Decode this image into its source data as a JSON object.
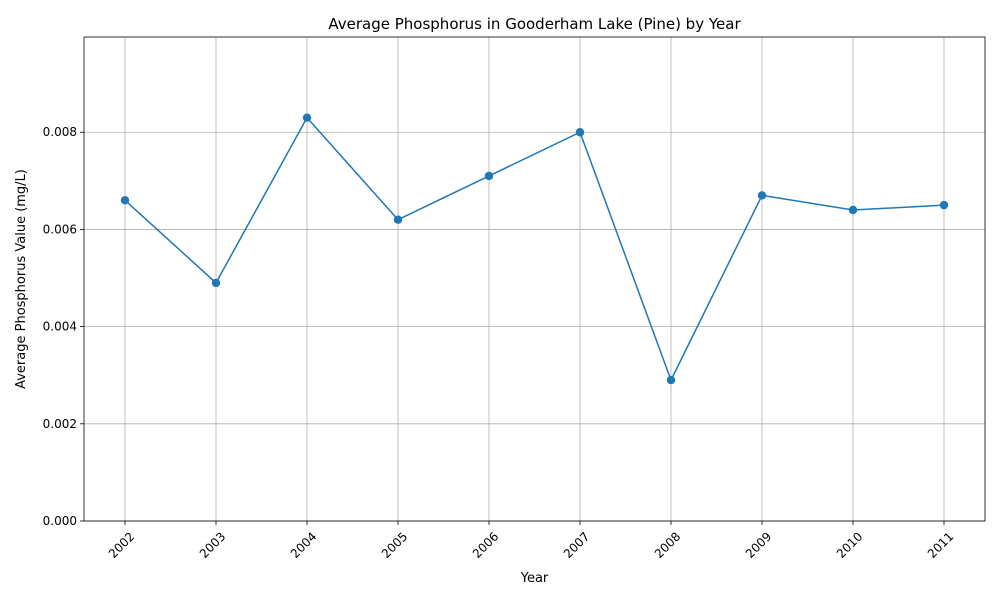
{
  "chart_data": {
    "type": "line",
    "title": "Average Phosphorus in Gooderham Lake (Pine) by Year",
    "xlabel": "Year",
    "ylabel": "Average Phosphorus Value (mg/L)",
    "categories": [
      "2002",
      "2003",
      "2004",
      "2005",
      "2006",
      "2007",
      "2008",
      "2009",
      "2010",
      "2011"
    ],
    "series": [
      {
        "values": [
          0.0066,
          0.0049,
          0.0083,
          0.0062,
          0.0071,
          0.008,
          0.0029,
          0.0067,
          0.0064,
          0.0065
        ],
        "color": "#1f77b4",
        "marker": "circle"
      }
    ],
    "ylim": [
      0,
      0.00996
    ],
    "yticks": [
      "0.000",
      "0.002",
      "0.004",
      "0.006",
      "0.008"
    ],
    "ytick_values": [
      0,
      0.002,
      0.004,
      0.006,
      0.008
    ],
    "grid": true,
    "xtick_rotation": 45
  }
}
